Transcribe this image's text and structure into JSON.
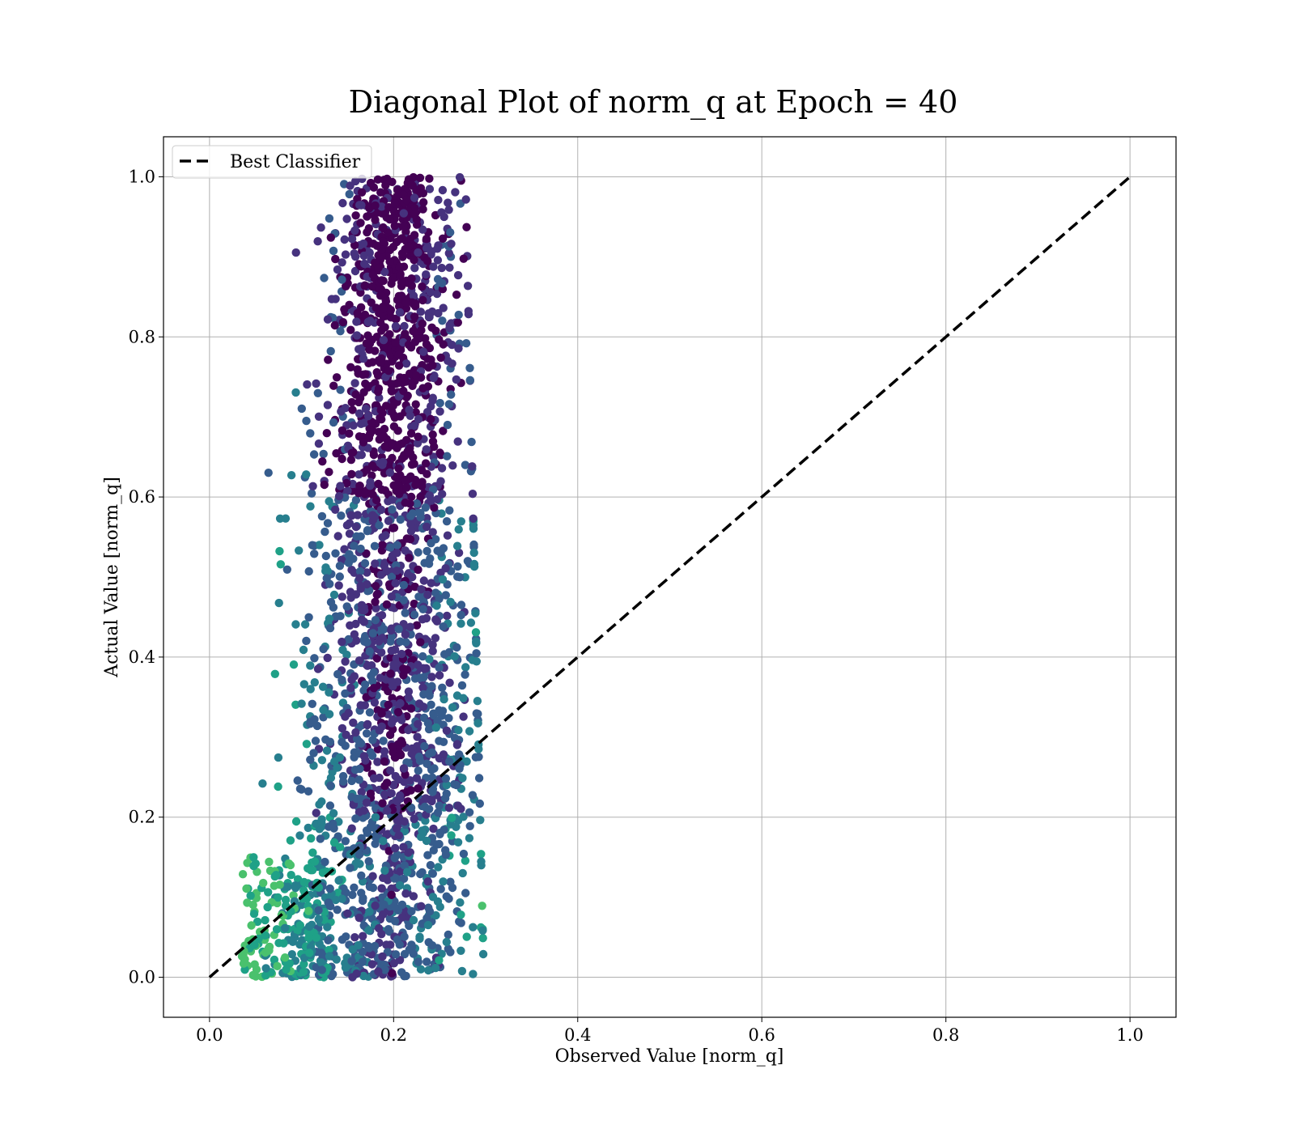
{
  "chart_data": {
    "type": "scatter",
    "title": "Diagonal Plot of norm_q at Epoch = 40",
    "xlabel": "Observed Value [norm_q]",
    "ylabel": "Actual Value [norm_q]",
    "xlim": [
      -0.05,
      1.05
    ],
    "ylim": [
      -0.05,
      1.05
    ],
    "xticks": [
      0.0,
      0.2,
      0.4,
      0.6,
      0.8,
      1.0
    ],
    "yticks": [
      0.0,
      0.2,
      0.4,
      0.6,
      0.8,
      1.0
    ],
    "xtick_labels": [
      "0.0",
      "0.2",
      "0.4",
      "0.6",
      "0.8",
      "1.0"
    ],
    "ytick_labels": [
      "0.0",
      "0.2",
      "0.4",
      "0.6",
      "0.8",
      "1.0"
    ],
    "grid": true,
    "legend": {
      "placement": "top-left",
      "entries": [
        {
          "label": "Best Classifier",
          "style": "dashed",
          "color": "#000000"
        }
      ]
    },
    "reference_line": {
      "name": "Best Classifier",
      "x": [
        0.0,
        1.0
      ],
      "y": [
        0.0,
        1.0
      ],
      "color": "#000000",
      "style": "dashed"
    },
    "scatter": {
      "colormap": "viridis",
      "colors": [
        "#440154",
        "#46327e",
        "#365c8d",
        "#277f8e",
        "#1fa187",
        "#4ac16d"
      ],
      "cloud_x_range": [
        0.03,
        0.3
      ],
      "cloud_y_range": [
        0.0,
        1.0
      ],
      "cloud_center_x": 0.2
    }
  }
}
